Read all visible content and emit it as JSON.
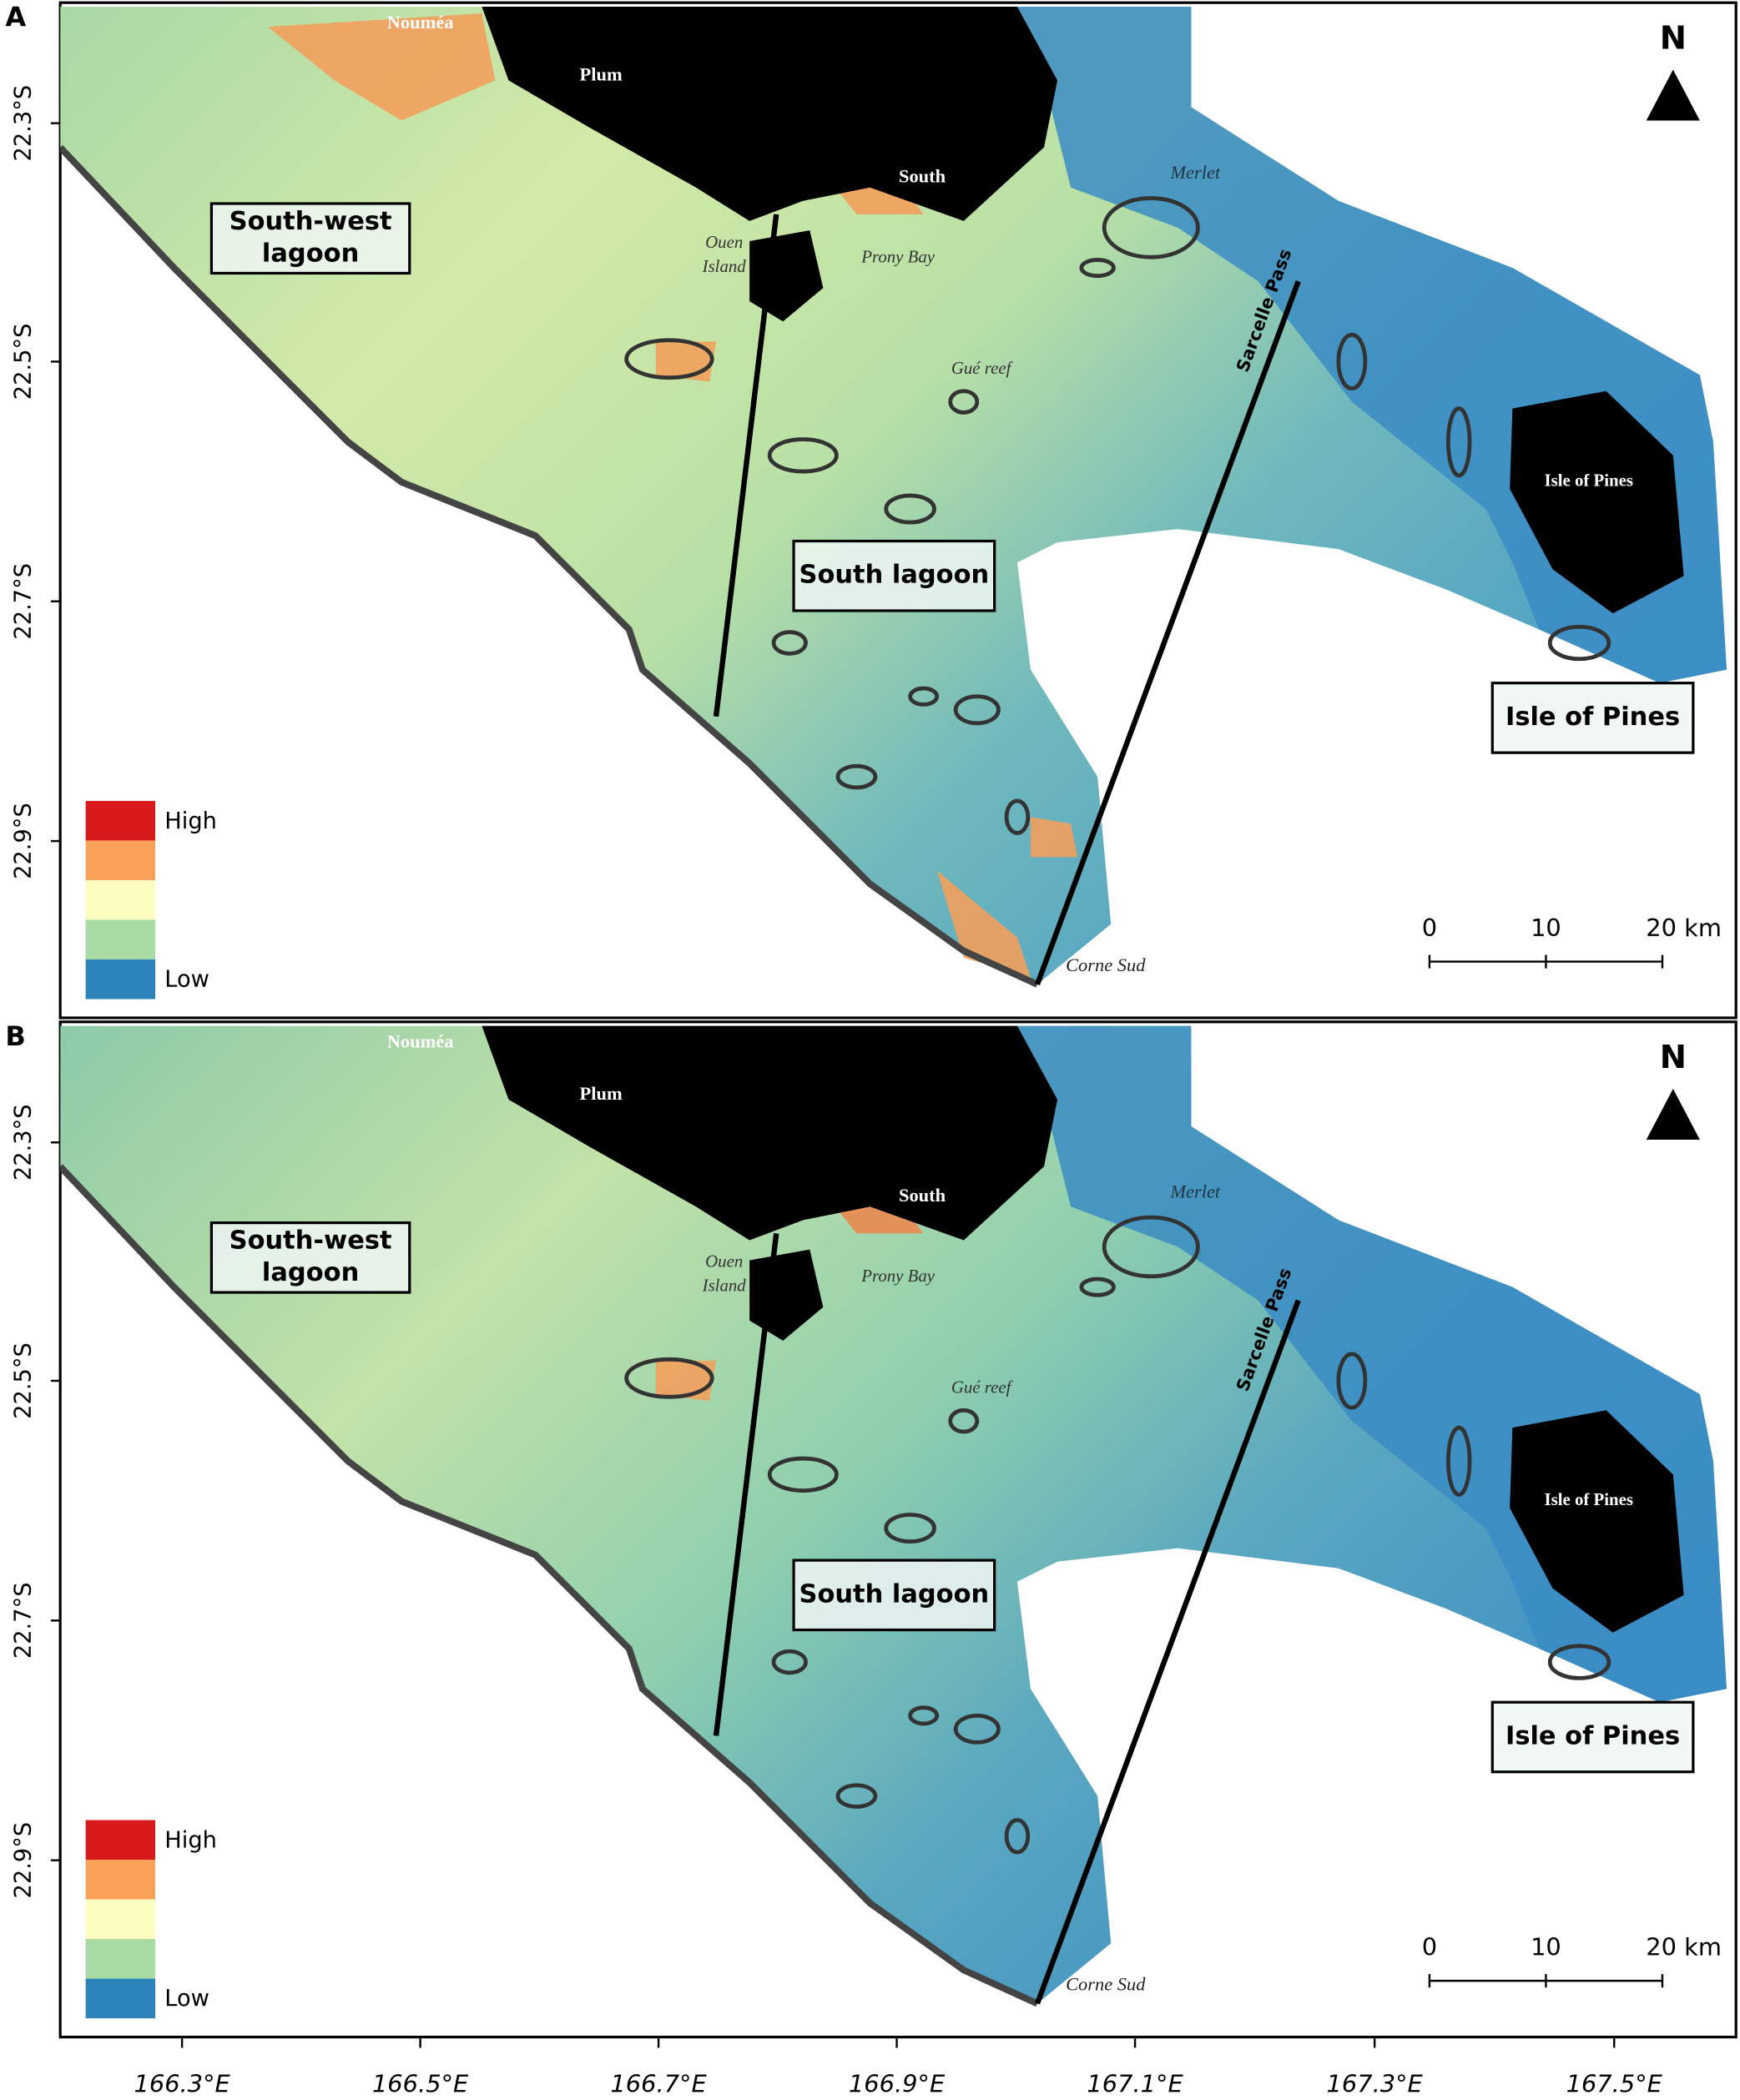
{
  "map": {
    "panels": [
      {
        "letter": "A",
        "north": "N",
        "lat_ticks": [
          "22.3°S",
          "22.5°S",
          "22.7°S",
          "22.9°S"
        ],
        "places": [
          "Nouméa",
          "Plum",
          "South",
          "Merlet",
          "Ouen",
          "Island",
          "Prony Bay",
          "Gué reef",
          "Sarcelle Pass",
          "Isle of Pines",
          "Corne Sud"
        ],
        "regions": [
          [
            "South-west",
            "lagoon"
          ],
          [
            "South lagoon"
          ],
          [
            "Isle of Pines"
          ]
        ],
        "legend": {
          "high": "High",
          "low": "Low"
        },
        "scale_bar": [
          "0",
          "10",
          "20 km"
        ]
      },
      {
        "letter": "B",
        "north": "N",
        "lat_ticks": [
          "22.3°S",
          "22.5°S",
          "22.7°S",
          "22.9°S"
        ],
        "places": [
          "Nouméa",
          "Plum",
          "South",
          "Merlet",
          "Ouen",
          "Island",
          "Prony Bay",
          "Gué reef",
          "Sarcelle Pass",
          "Isle of Pines",
          "Corne Sud"
        ],
        "regions": [
          [
            "South-west",
            "lagoon"
          ],
          [
            "South lagoon"
          ],
          [
            "Isle of Pines"
          ]
        ],
        "legend": {
          "high": "High",
          "low": "Low"
        },
        "scale_bar": [
          "0",
          "10",
          "20 km"
        ]
      }
    ],
    "lon_ticks": [
      "166.3°E",
      "166.5°E",
      "166.7°E",
      "166.9°E",
      "167.1°E",
      "167.3°E",
      "167.5°E"
    ]
  }
}
